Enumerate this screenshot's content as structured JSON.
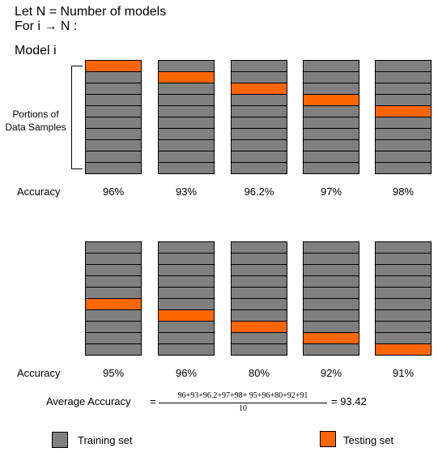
{
  "header": {
    "line1": "Let N = Number of models",
    "line2": "For i → N :",
    "line3": "Model i"
  },
  "bracket_label": "Portions of\nData Samples",
  "accuracy_label": "Accuracy",
  "segments_per_column": 10,
  "colors": {
    "training": "#808080",
    "testing": "#ff6600",
    "border": "#000000"
  },
  "rows": [
    {
      "models": [
        {
          "accuracy": "96%",
          "test_index": 0
        },
        {
          "accuracy": "93%",
          "test_index": 1
        },
        {
          "accuracy": "96.2%",
          "test_index": 2
        },
        {
          "accuracy": "97%",
          "test_index": 3
        },
        {
          "accuracy": "98%",
          "test_index": 4
        }
      ]
    },
    {
      "models": [
        {
          "accuracy": "95%",
          "test_index": 5
        },
        {
          "accuracy": "96%",
          "test_index": 6
        },
        {
          "accuracy": "80%",
          "test_index": 7
        },
        {
          "accuracy": "92%",
          "test_index": 8
        },
        {
          "accuracy": "91%",
          "test_index": 9
        }
      ]
    }
  ],
  "average": {
    "label": "Average Accuracy",
    "equals": "=",
    "numerator": "96+93+96.2+97+98+ 95+96+80+92+91",
    "denominator": "10",
    "result": "= 93.42"
  },
  "legend": {
    "training_label": "Training set",
    "testing_label": "Testing set"
  }
}
